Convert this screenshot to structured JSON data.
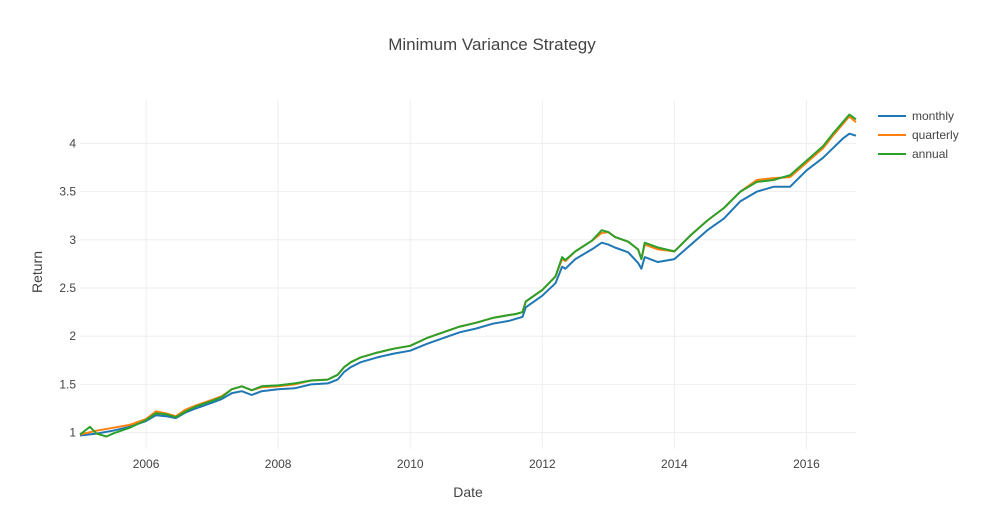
{
  "chart_data": {
    "type": "line",
    "title": "Minimum Variance Strategy",
    "xlabel": "Date",
    "ylabel": "Return",
    "xlim": [
      2005.0,
      2016.75
    ],
    "ylim": [
      0.83,
      4.45
    ],
    "xticks": [
      2006,
      2008,
      2010,
      2012,
      2014,
      2016
    ],
    "yticks": [
      1,
      1.5,
      2,
      2.5,
      3,
      3.5,
      4
    ],
    "ytick_labels": [
      "1",
      "1.5",
      "2",
      "2.5",
      "3",
      "3.5",
      "4"
    ],
    "grid": true,
    "legend_position": "top-right",
    "series": [
      {
        "name": "monthly",
        "color": "#1f77b4",
        "x": [
          2005.0,
          2005.25,
          2005.5,
          2005.75,
          2006.0,
          2006.15,
          2006.3,
          2006.45,
          2006.6,
          2006.75,
          2007.0,
          2007.15,
          2007.3,
          2007.45,
          2007.6,
          2007.75,
          2008.0,
          2008.25,
          2008.5,
          2008.75,
          2008.9,
          2009.0,
          2009.1,
          2009.25,
          2009.5,
          2009.75,
          2010.0,
          2010.25,
          2010.5,
          2010.75,
          2011.0,
          2011.25,
          2011.5,
          2011.6,
          2011.7,
          2011.75,
          2012.0,
          2012.2,
          2012.3,
          2012.35,
          2012.5,
          2012.75,
          2012.9,
          2013.0,
          2013.1,
          2013.3,
          2013.45,
          2013.5,
          2013.55,
          2013.75,
          2014.0,
          2014.25,
          2014.5,
          2014.75,
          2015.0,
          2015.25,
          2015.5,
          2015.75,
          2016.0,
          2016.25,
          2016.4,
          2016.55,
          2016.65,
          2016.75
        ],
        "y": [
          0.97,
          0.99,
          1.02,
          1.06,
          1.12,
          1.18,
          1.17,
          1.15,
          1.21,
          1.25,
          1.31,
          1.35,
          1.41,
          1.43,
          1.39,
          1.43,
          1.45,
          1.46,
          1.5,
          1.51,
          1.55,
          1.63,
          1.68,
          1.73,
          1.78,
          1.82,
          1.85,
          1.92,
          1.98,
          2.04,
          2.08,
          2.13,
          2.16,
          2.18,
          2.2,
          2.3,
          2.42,
          2.55,
          2.72,
          2.7,
          2.8,
          2.9,
          2.97,
          2.95,
          2.92,
          2.87,
          2.76,
          2.7,
          2.82,
          2.77,
          2.8,
          2.95,
          3.1,
          3.22,
          3.4,
          3.5,
          3.55,
          3.55,
          3.72,
          3.85,
          3.95,
          4.05,
          4.1,
          4.08
        ]
      },
      {
        "name": "quarterly",
        "color": "#ff7f0e",
        "x": [
          2005.0,
          2005.25,
          2005.5,
          2005.75,
          2006.0,
          2006.15,
          2006.3,
          2006.45,
          2006.6,
          2006.75,
          2007.0,
          2007.15,
          2007.3,
          2007.45,
          2007.6,
          2007.75,
          2008.0,
          2008.25,
          2008.5,
          2008.75,
          2008.9,
          2009.0,
          2009.1,
          2009.25,
          2009.5,
          2009.75,
          2010.0,
          2010.25,
          2010.5,
          2010.75,
          2011.0,
          2011.25,
          2011.5,
          2011.6,
          2011.7,
          2011.75,
          2012.0,
          2012.2,
          2012.3,
          2012.35,
          2012.5,
          2012.75,
          2012.9,
          2013.0,
          2013.1,
          2013.3,
          2013.45,
          2013.5,
          2013.55,
          2013.75,
          2014.0,
          2014.25,
          2014.5,
          2014.75,
          2015.0,
          2015.25,
          2015.5,
          2015.75,
          2016.0,
          2016.25,
          2016.4,
          2016.55,
          2016.65,
          2016.75
        ],
        "y": [
          0.98,
          1.02,
          1.05,
          1.08,
          1.14,
          1.22,
          1.2,
          1.17,
          1.24,
          1.28,
          1.34,
          1.38,
          1.45,
          1.48,
          1.44,
          1.47,
          1.48,
          1.5,
          1.54,
          1.55,
          1.6,
          1.68,
          1.73,
          1.78,
          1.83,
          1.87,
          1.9,
          1.98,
          2.04,
          2.1,
          2.14,
          2.19,
          2.22,
          2.23,
          2.25,
          2.36,
          2.48,
          2.62,
          2.8,
          2.78,
          2.88,
          2.99,
          3.07,
          3.08,
          3.03,
          2.98,
          2.9,
          2.8,
          2.95,
          2.9,
          2.88,
          3.05,
          3.2,
          3.33,
          3.5,
          3.62,
          3.64,
          3.65,
          3.8,
          3.95,
          4.08,
          4.2,
          4.28,
          4.22
        ]
      },
      {
        "name": "annual",
        "color": "#2ca02c",
        "x": [
          2005.0,
          2005.15,
          2005.25,
          2005.4,
          2005.5,
          2005.75,
          2006.0,
          2006.15,
          2006.3,
          2006.45,
          2006.6,
          2006.75,
          2007.0,
          2007.15,
          2007.3,
          2007.45,
          2007.6,
          2007.75,
          2008.0,
          2008.25,
          2008.5,
          2008.75,
          2008.9,
          2009.0,
          2009.1,
          2009.25,
          2009.5,
          2009.75,
          2010.0,
          2010.25,
          2010.5,
          2010.75,
          2011.0,
          2011.25,
          2011.5,
          2011.6,
          2011.7,
          2011.75,
          2012.0,
          2012.2,
          2012.3,
          2012.35,
          2012.5,
          2012.75,
          2012.9,
          2013.0,
          2013.1,
          2013.3,
          2013.45,
          2013.5,
          2013.55,
          2013.75,
          2014.0,
          2014.25,
          2014.5,
          2014.75,
          2015.0,
          2015.25,
          2015.5,
          2015.75,
          2016.0,
          2016.25,
          2016.4,
          2016.55,
          2016.65,
          2016.75
        ],
        "y": [
          0.98,
          1.06,
          0.99,
          0.96,
          0.99,
          1.05,
          1.13,
          1.2,
          1.19,
          1.16,
          1.22,
          1.27,
          1.33,
          1.37,
          1.45,
          1.48,
          1.44,
          1.48,
          1.49,
          1.51,
          1.54,
          1.55,
          1.6,
          1.68,
          1.73,
          1.78,
          1.83,
          1.87,
          1.9,
          1.98,
          2.04,
          2.1,
          2.14,
          2.19,
          2.22,
          2.23,
          2.25,
          2.36,
          2.48,
          2.62,
          2.82,
          2.79,
          2.88,
          2.99,
          3.1,
          3.08,
          3.03,
          2.98,
          2.9,
          2.8,
          2.97,
          2.92,
          2.88,
          3.05,
          3.2,
          3.33,
          3.5,
          3.6,
          3.62,
          3.67,
          3.82,
          3.97,
          4.1,
          4.22,
          4.3,
          4.25
        ]
      }
    ]
  }
}
